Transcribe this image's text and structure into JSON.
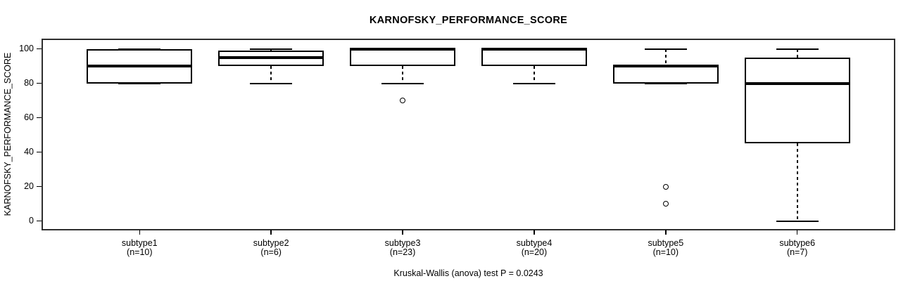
{
  "colors": {
    "foreground": "#000000",
    "background": "#ffffff",
    "frame": "#2e2e2e"
  },
  "chart_data": {
    "type": "boxplot",
    "title": "KARNOFSKY_PERFORMANCE_SCORE",
    "ylabel": "KARNOFSKY_PERFORMANCE_SCORE",
    "caption": "Kruskal-Wallis (anova) test P = 0.0243",
    "grid": false,
    "legend": null,
    "y_ticks": [
      0,
      20,
      40,
      60,
      80,
      100
    ],
    "ylim": [
      -5.1,
      105.6
    ],
    "groups": [
      {
        "label": "subtype1",
        "count_label": "(n=10)",
        "n": 10,
        "stats": {
          "min": 80,
          "q1": 80,
          "median": 90,
          "q3": 100,
          "max": 100
        },
        "outliers": []
      },
      {
        "label": "subtype2",
        "count_label": "(n=6)",
        "n": 6,
        "stats": {
          "min": 80,
          "q1": 90,
          "median": 95,
          "q3": 99,
          "max": 100
        },
        "outliers": []
      },
      {
        "label": "subtype3",
        "count_label": "(n=23)",
        "n": 23,
        "stats": {
          "min": 80,
          "q1": 90,
          "median": 100,
          "q3": 100,
          "max": 100
        },
        "outliers": [
          70
        ]
      },
      {
        "label": "subtype4",
        "count_label": "(n=20)",
        "n": 20,
        "stats": {
          "min": 80,
          "q1": 90,
          "median": 100,
          "q3": 100,
          "max": 100
        },
        "outliers": []
      },
      {
        "label": "subtype5",
        "count_label": "(n=10)",
        "n": 10,
        "stats": {
          "min": 80,
          "q1": 80,
          "median": 90,
          "q3": 90,
          "max": 100
        },
        "outliers": [
          20,
          10
        ]
      },
      {
        "label": "subtype6",
        "count_label": "(n=7)",
        "n": 7,
        "stats": {
          "min": 0,
          "q1": 45,
          "median": 80,
          "q3": 95,
          "max": 100
        },
        "outliers": []
      }
    ]
  }
}
